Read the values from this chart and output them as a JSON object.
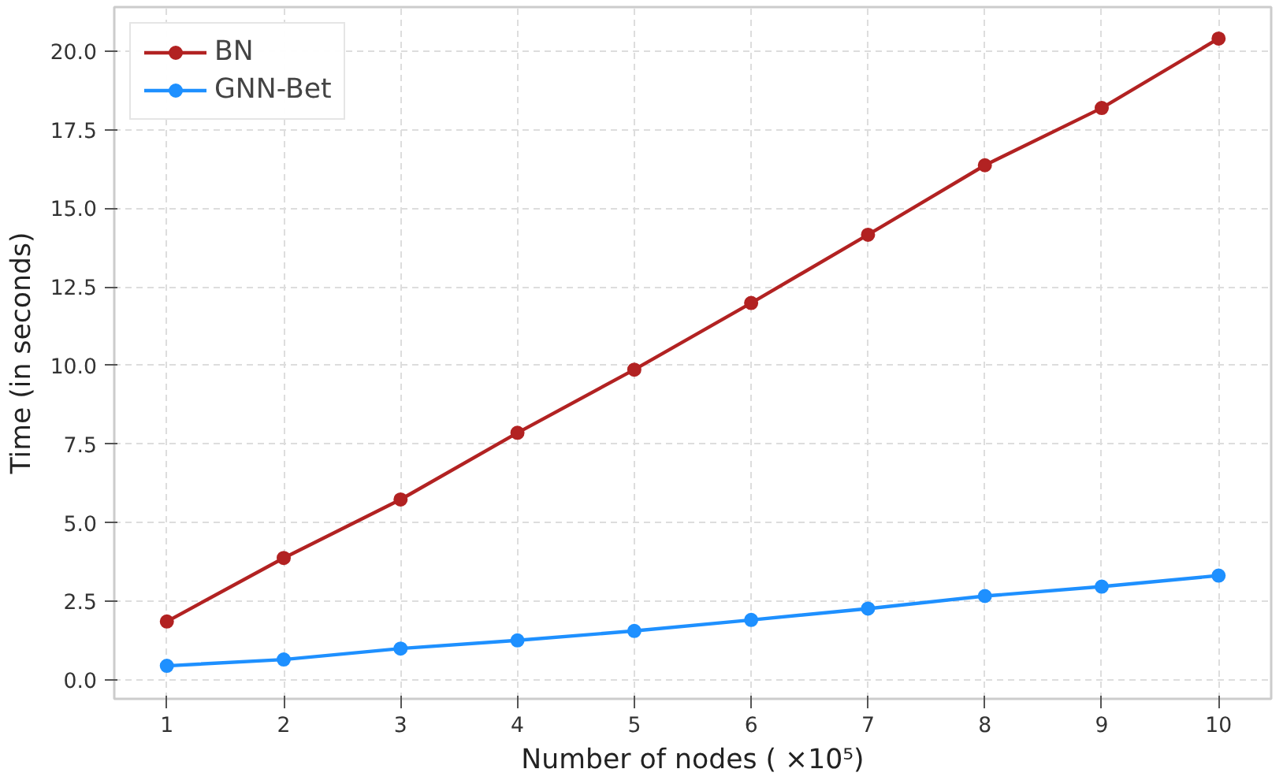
{
  "chart_data": {
    "type": "line",
    "xlabel": "Number of nodes ( ×10⁵)",
    "ylabel": "Time (in seconds)",
    "x": [
      1,
      2,
      3,
      4,
      5,
      6,
      7,
      8,
      9,
      10
    ],
    "series": [
      {
        "name": "BN",
        "color": "#b22222",
        "values": [
          1.86,
          3.88,
          5.74,
          7.86,
          9.87,
          11.99,
          14.16,
          16.37,
          18.19,
          20.4
        ]
      },
      {
        "name": "GNN-Bet",
        "color": "#1e90ff",
        "values": [
          0.45,
          0.65,
          1.0,
          1.26,
          1.56,
          1.91,
          2.27,
          2.67,
          2.97,
          3.32
        ]
      }
    ],
    "xlim": [
      0.55,
      10.45
    ],
    "ylim": [
      -0.6,
      21.4
    ],
    "xticks": [
      1,
      2,
      3,
      4,
      5,
      6,
      7,
      8,
      9,
      10
    ],
    "yticks": [
      {
        "value": 0,
        "label": "0.0"
      },
      {
        "value": 2.5,
        "label": "2.5"
      },
      {
        "value": 5,
        "label": "5.0"
      },
      {
        "value": 7.5,
        "label": "7.5"
      },
      {
        "value": 10,
        "label": "10.0"
      },
      {
        "value": 12.5,
        "label": "12.5"
      },
      {
        "value": 15,
        "label": "15.0"
      },
      {
        "value": 17.5,
        "label": "17.5"
      },
      {
        "value": 20,
        "label": "20.0"
      }
    ],
    "grid": true,
    "legend": "top left",
    "marker": "circle",
    "line_style": "solid"
  }
}
